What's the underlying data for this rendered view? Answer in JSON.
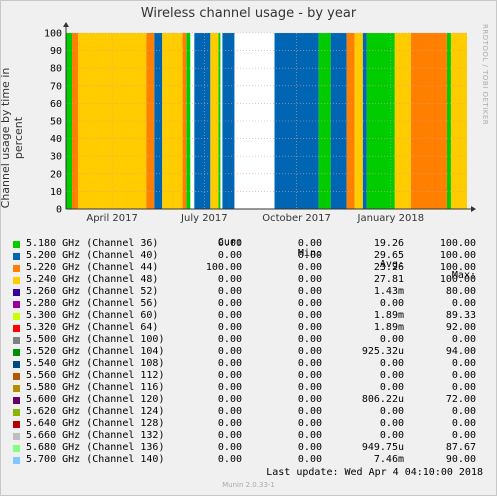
{
  "chart_data": {
    "type": "area",
    "title": "Wireless channel usage - by year",
    "ylabel": "Channel usage by time in percent",
    "ylim": [
      0,
      100
    ],
    "y_ticks": [
      "0",
      "10",
      "20",
      "30",
      "40",
      "50",
      "60",
      "70",
      "80",
      "90",
      "100"
    ],
    "x_ticks": [
      "April 2017",
      "July 2017",
      "October 2017",
      "January 2018"
    ],
    "grid": true,
    "stacked": true,
    "series_periods": [
      {
        "channel": "36",
        "spans": [
          [
            0.0,
            0.015
          ],
          [
            0.3,
            0.31
          ],
          [
            0.38,
            0.385
          ],
          [
            0.63,
            0.66
          ],
          [
            0.75,
            0.82
          ],
          [
            0.95,
            0.96
          ]
        ]
      },
      {
        "channel": "40",
        "spans": [
          [
            0.22,
            0.24
          ],
          [
            0.32,
            0.36
          ],
          [
            0.39,
            0.42
          ],
          [
            0.52,
            0.63
          ],
          [
            0.66,
            0.7
          ],
          [
            0.74,
            0.75
          ]
        ]
      },
      {
        "channel": "44",
        "spans": [
          [
            0.015,
            0.03
          ],
          [
            0.2,
            0.22
          ],
          [
            0.29,
            0.3
          ],
          [
            0.7,
            0.72
          ],
          [
            0.86,
            0.95
          ]
        ]
      },
      {
        "channel": "48",
        "spans": [
          [
            0.03,
            0.2
          ],
          [
            0.24,
            0.29
          ],
          [
            0.36,
            0.38
          ],
          [
            0.72,
            0.74
          ],
          [
            0.82,
            0.86
          ],
          [
            0.96,
            1.0
          ]
        ]
      }
    ]
  },
  "header": {
    "cur": "Cur:",
    "min": "Min:",
    "avg": "Avg:",
    "max": "Max:"
  },
  "legend": [
    {
      "label": "5.180 GHz (Channel 36)",
      "color": "#00cc00",
      "cur": "0.00",
      "min": "0.00",
      "avg": "19.26",
      "max": "100.00"
    },
    {
      "label": "5.200 GHz (Channel 40)",
      "color": "#0066b3",
      "cur": "0.00",
      "min": "0.00",
      "avg": "29.65",
      "max": "100.00"
    },
    {
      "label": "5.220 GHz (Channel 44)",
      "color": "#ff8000",
      "cur": "100.00",
      "min": "0.00",
      "avg": "23.26",
      "max": "100.00"
    },
    {
      "label": "5.240 GHz (Channel 48)",
      "color": "#ffcc00",
      "cur": "0.00",
      "min": "0.00",
      "avg": "27.81",
      "max": "100.00"
    },
    {
      "label": "5.260 GHz (Channel 52)",
      "color": "#330099",
      "cur": "0.00",
      "min": "0.00",
      "avg": "1.43m",
      "max": "80.00"
    },
    {
      "label": "5.280 GHz (Channel 56)",
      "color": "#990099",
      "cur": "0.00",
      "min": "0.00",
      "avg": "0.00",
      "max": "0.00"
    },
    {
      "label": "5.300 GHz (Channel 60)",
      "color": "#ccff00",
      "cur": "0.00",
      "min": "0.00",
      "avg": "1.89m",
      "max": "89.33"
    },
    {
      "label": "5.320 GHz (Channel 64)",
      "color": "#ff0000",
      "cur": "0.00",
      "min": "0.00",
      "avg": "1.89m",
      "max": "92.00"
    },
    {
      "label": "5.500 GHz (Channel 100)",
      "color": "#808080",
      "cur": "0.00",
      "min": "0.00",
      "avg": "0.00",
      "max": "0.00"
    },
    {
      "label": "5.520 GHz (Channel 104)",
      "color": "#008f00",
      "cur": "0.00",
      "min": "0.00",
      "avg": "925.32u",
      "max": "94.00"
    },
    {
      "label": "5.540 GHz (Channel 108)",
      "color": "#00487d",
      "cur": "0.00",
      "min": "0.00",
      "avg": "0.00",
      "max": "0.00"
    },
    {
      "label": "5.560 GHz (Channel 112)",
      "color": "#b35a00",
      "cur": "0.00",
      "min": "0.00",
      "avg": "0.00",
      "max": "0.00"
    },
    {
      "label": "5.580 GHz (Channel 116)",
      "color": "#b38f00",
      "cur": "0.00",
      "min": "0.00",
      "avg": "0.00",
      "max": "0.00"
    },
    {
      "label": "5.600 GHz (Channel 120)",
      "color": "#6b006b",
      "cur": "0.00",
      "min": "0.00",
      "avg": "806.22u",
      "max": "72.00"
    },
    {
      "label": "5.620 GHz (Channel 124)",
      "color": "#8fb300",
      "cur": "0.00",
      "min": "0.00",
      "avg": "0.00",
      "max": "0.00"
    },
    {
      "label": "5.640 GHz (Channel 128)",
      "color": "#b30000",
      "cur": "0.00",
      "min": "0.00",
      "avg": "0.00",
      "max": "0.00"
    },
    {
      "label": "5.660 GHz (Channel 132)",
      "color": "#bebebe",
      "cur": "0.00",
      "min": "0.00",
      "avg": "0.00",
      "max": "0.00"
    },
    {
      "label": "5.680 GHz (Channel 136)",
      "color": "#80ff80",
      "cur": "0.00",
      "min": "0.00",
      "avg": "949.75u",
      "max": "87.67"
    },
    {
      "label": "5.700 GHz (Channel 140)",
      "color": "#80c9ff",
      "cur": "0.00",
      "min": "0.00",
      "avg": "7.46m",
      "max": "90.00"
    }
  ],
  "last_update": "Last update: Wed Apr  4 04:10:00 2018",
  "side_label": "RRDTOOL / TOBI OETIKER",
  "footer": "Munin 2.0.33-1"
}
